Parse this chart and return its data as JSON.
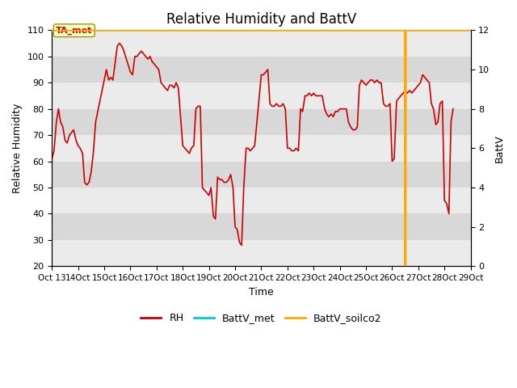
{
  "title": "Relative Humidity and BattV",
  "xlabel": "Time",
  "ylabel_left": "Relative Humidity",
  "ylabel_right": "BattV",
  "ylim_left": [
    20,
    110
  ],
  "ylim_right": [
    0,
    12
  ],
  "yticks_left": [
    20,
    30,
    40,
    50,
    60,
    70,
    80,
    90,
    100,
    110
  ],
  "yticks_right": [
    0,
    2,
    4,
    6,
    8,
    10,
    12
  ],
  "annotation_text": "TA_met",
  "rh_color": "#cc0000",
  "battv_met_color": "#00ccdd",
  "battv_soilco2_color": "#ffaa00",
  "strip_colors": [
    "#ebebeb",
    "#d8d8d8"
  ],
  "title_fontsize": 12,
  "axis_fontsize": 9,
  "tick_fontsize": 8,
  "n_days": 16,
  "rh_data": [
    [
      0.0,
      61
    ],
    [
      0.08,
      64
    ],
    [
      0.17,
      75
    ],
    [
      0.25,
      80
    ],
    [
      0.33,
      75
    ],
    [
      0.42,
      73
    ],
    [
      0.5,
      68
    ],
    [
      0.58,
      67
    ],
    [
      0.67,
      70
    ],
    [
      0.75,
      71
    ],
    [
      0.83,
      72
    ],
    [
      0.92,
      68
    ],
    [
      1.0,
      66
    ],
    [
      1.08,
      65
    ],
    [
      1.17,
      63
    ],
    [
      1.25,
      52
    ],
    [
      1.33,
      51
    ],
    [
      1.42,
      52
    ],
    [
      1.5,
      56
    ],
    [
      1.58,
      63
    ],
    [
      1.67,
      75
    ],
    [
      2.0,
      91
    ],
    [
      2.08,
      95
    ],
    [
      2.17,
      91
    ],
    [
      2.25,
      92
    ],
    [
      2.33,
      91
    ],
    [
      2.5,
      104
    ],
    [
      2.58,
      105
    ],
    [
      2.67,
      104
    ],
    [
      2.75,
      102
    ],
    [
      3.0,
      94
    ],
    [
      3.08,
      93
    ],
    [
      3.17,
      100
    ],
    [
      3.25,
      100
    ],
    [
      3.33,
      101
    ],
    [
      3.42,
      102
    ],
    [
      3.5,
      101
    ],
    [
      3.58,
      100
    ],
    [
      3.67,
      99
    ],
    [
      3.75,
      100
    ],
    [
      3.83,
      98
    ],
    [
      3.92,
      97
    ],
    [
      4.0,
      96
    ],
    [
      4.08,
      95
    ],
    [
      4.17,
      90
    ],
    [
      4.25,
      89
    ],
    [
      4.33,
      88
    ],
    [
      4.42,
      87
    ],
    [
      4.5,
      89
    ],
    [
      4.58,
      89
    ],
    [
      4.67,
      88
    ],
    [
      4.75,
      90
    ],
    [
      4.83,
      88
    ],
    [
      5.0,
      66
    ],
    [
      5.08,
      65
    ],
    [
      5.17,
      64
    ],
    [
      5.25,
      63
    ],
    [
      5.33,
      65
    ],
    [
      5.42,
      66
    ],
    [
      5.5,
      80
    ],
    [
      5.58,
      81
    ],
    [
      5.67,
      81
    ],
    [
      5.75,
      50
    ],
    [
      5.83,
      49
    ],
    [
      5.92,
      48
    ],
    [
      6.0,
      47
    ],
    [
      6.08,
      50
    ],
    [
      6.17,
      39
    ],
    [
      6.25,
      38
    ],
    [
      6.33,
      54
    ],
    [
      6.42,
      53
    ],
    [
      6.5,
      53
    ],
    [
      6.58,
      52
    ],
    [
      6.67,
      52
    ],
    [
      6.75,
      53
    ],
    [
      6.83,
      55
    ],
    [
      6.92,
      50
    ],
    [
      7.0,
      35
    ],
    [
      7.08,
      34
    ],
    [
      7.17,
      29
    ],
    [
      7.25,
      28
    ],
    [
      7.33,
      50
    ],
    [
      7.42,
      65
    ],
    [
      7.5,
      65
    ],
    [
      7.58,
      64
    ],
    [
      7.67,
      65
    ],
    [
      7.75,
      66
    ],
    [
      8.0,
      93
    ],
    [
      8.08,
      93
    ],
    [
      8.17,
      94
    ],
    [
      8.25,
      95
    ],
    [
      8.33,
      82
    ],
    [
      8.42,
      81
    ],
    [
      8.5,
      81
    ],
    [
      8.58,
      82
    ],
    [
      8.67,
      81
    ],
    [
      8.75,
      81
    ],
    [
      8.83,
      82
    ],
    [
      8.92,
      80
    ],
    [
      9.0,
      65
    ],
    [
      9.08,
      65
    ],
    [
      9.17,
      64
    ],
    [
      9.25,
      64
    ],
    [
      9.33,
      65
    ],
    [
      9.42,
      64
    ],
    [
      9.5,
      80
    ],
    [
      9.58,
      79
    ],
    [
      9.67,
      85
    ],
    [
      9.75,
      85
    ],
    [
      9.83,
      86
    ],
    [
      9.92,
      85
    ],
    [
      10.0,
      86
    ],
    [
      10.08,
      85
    ],
    [
      10.17,
      85
    ],
    [
      10.25,
      85
    ],
    [
      10.33,
      85
    ],
    [
      10.42,
      80
    ],
    [
      10.5,
      78
    ],
    [
      10.58,
      77
    ],
    [
      10.67,
      78
    ],
    [
      10.75,
      77
    ],
    [
      10.83,
      79
    ],
    [
      10.92,
      79
    ],
    [
      11.0,
      80
    ],
    [
      11.08,
      80
    ],
    [
      11.17,
      80
    ],
    [
      11.25,
      80
    ],
    [
      11.33,
      75
    ],
    [
      11.42,
      73
    ],
    [
      11.5,
      72
    ],
    [
      11.58,
      72
    ],
    [
      11.67,
      73
    ],
    [
      11.75,
      89
    ],
    [
      11.83,
      91
    ],
    [
      11.92,
      90
    ],
    [
      12.0,
      89
    ],
    [
      12.08,
      90
    ],
    [
      12.17,
      91
    ],
    [
      12.25,
      91
    ],
    [
      12.33,
      90
    ],
    [
      12.42,
      91
    ],
    [
      12.5,
      90
    ],
    [
      12.58,
      90
    ],
    [
      12.67,
      82
    ],
    [
      12.75,
      81
    ],
    [
      12.83,
      81
    ],
    [
      12.92,
      82
    ],
    [
      13.0,
      60
    ],
    [
      13.08,
      61
    ],
    [
      13.17,
      83
    ],
    [
      13.25,
      84
    ],
    [
      13.33,
      85
    ],
    [
      13.42,
      86
    ],
    [
      13.5,
      87
    ],
    [
      13.58,
      86
    ],
    [
      13.67,
      87
    ],
    [
      13.75,
      86
    ],
    [
      13.83,
      87
    ],
    [
      13.92,
      88
    ],
    [
      14.0,
      89
    ],
    [
      14.08,
      90
    ],
    [
      14.17,
      93
    ],
    [
      14.25,
      92
    ],
    [
      14.33,
      91
    ],
    [
      14.42,
      90
    ],
    [
      14.5,
      82
    ],
    [
      14.58,
      80
    ],
    [
      14.67,
      74
    ],
    [
      14.75,
      75
    ],
    [
      14.83,
      82
    ],
    [
      14.92,
      83
    ],
    [
      15.0,
      45
    ],
    [
      15.08,
      44
    ],
    [
      15.17,
      40
    ],
    [
      15.25,
      75
    ],
    [
      15.33,
      80
    ]
  ],
  "battv_met_data": [
    [
      0.0,
      12.0
    ],
    [
      13.5,
      12.0
    ],
    [
      13.51,
      12.0
    ],
    [
      16.0,
      12.0
    ]
  ],
  "battv_soilco2_data": [
    [
      0.0,
      12.0
    ],
    [
      13.48,
      12.0
    ],
    [
      13.49,
      12.0
    ],
    [
      13.5,
      0.0
    ],
    [
      13.51,
      0.0
    ],
    [
      13.52,
      12.0
    ],
    [
      16.0,
      12.0
    ]
  ]
}
